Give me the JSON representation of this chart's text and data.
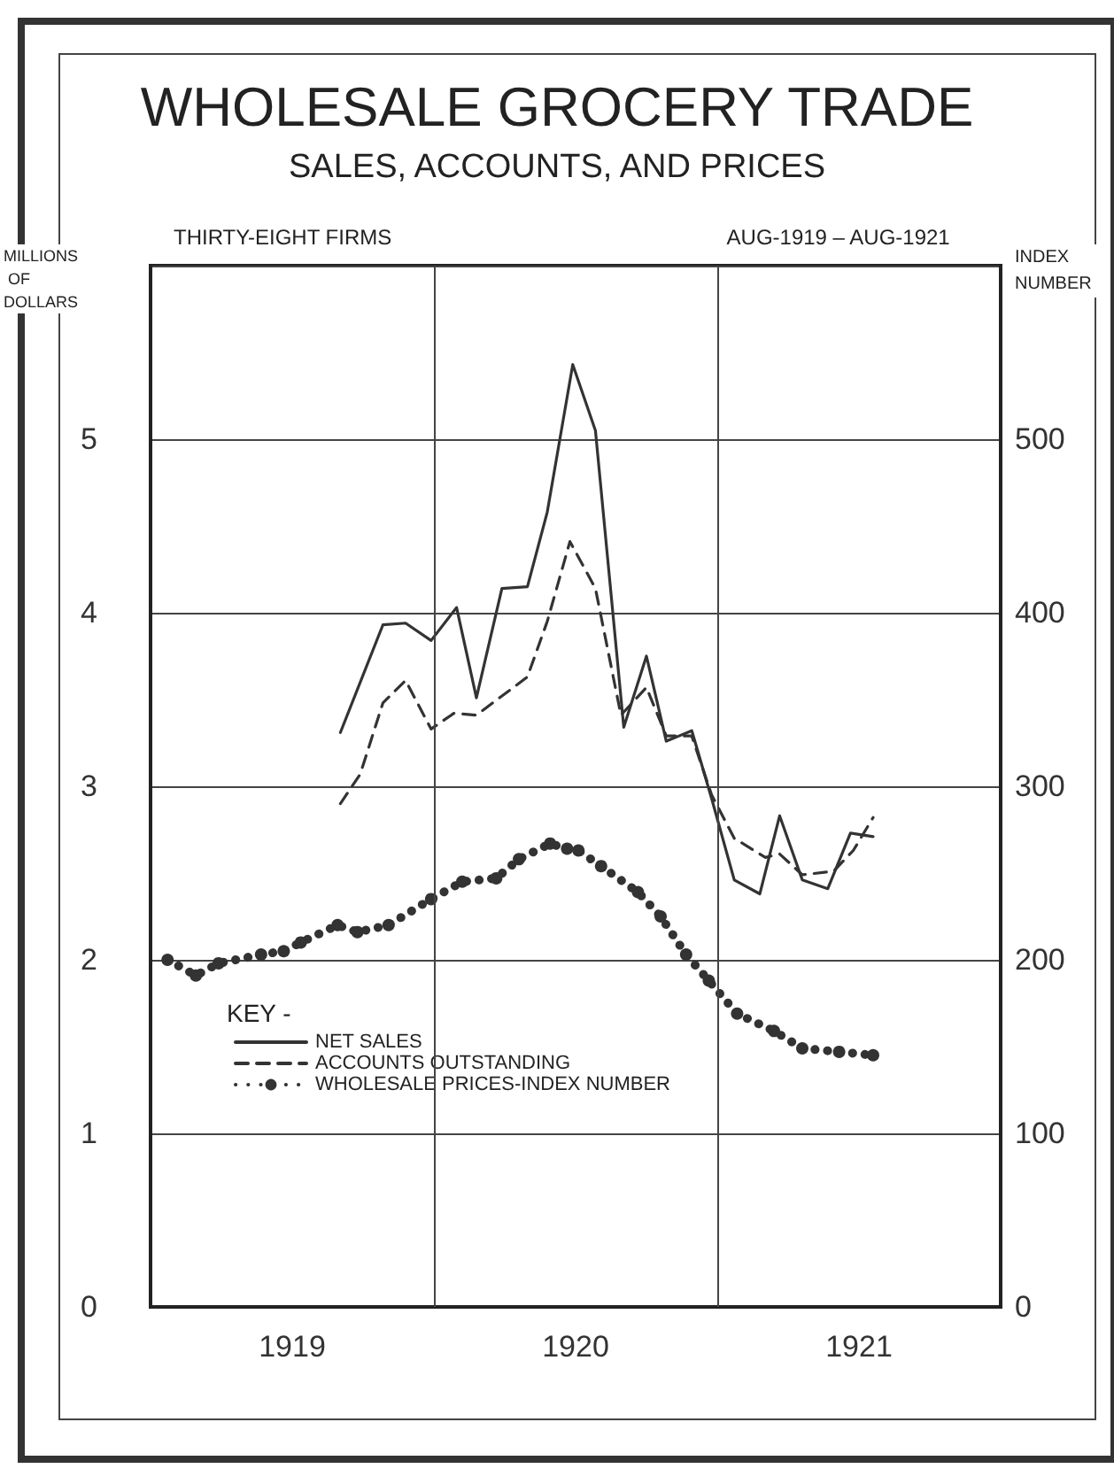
{
  "chart_data": {
    "type": "line",
    "title": "WHOLESALE GROCERY TRADE",
    "subtitle": "SALES, ACCOUNTS, AND PRICES",
    "annotations": [
      "THIRTY-EIGHT FIRMS",
      "AUG-1919 – AUG-1921"
    ],
    "ylabel": "MILLIONS OF DOLLARS",
    "y2label": "INDEX NUMBER",
    "legend_title": "KEY -",
    "legend": "bottom left",
    "grid": true,
    "xlim": [
      1919,
      1922
    ],
    "xticks": [
      {
        "value": 1919.5,
        "label": "1919"
      },
      {
        "value": 1920,
        "label": null
      },
      {
        "value": 1920.5,
        "label": "1920"
      },
      {
        "value": 1921,
        "label": null
      },
      {
        "value": 1921.5,
        "label": "1921"
      }
    ],
    "ylim": [
      0,
      6
    ],
    "yticks": [
      0,
      1,
      2,
      3,
      4,
      5
    ],
    "y2lim": [
      0,
      600
    ],
    "y2ticks": [
      0,
      100,
      200,
      300,
      400,
      500
    ],
    "series": [
      {
        "name": "NET SALES",
        "color": "#333333",
        "line_style": "solid",
        "marker": "none",
        "x": [
          1919.67,
          1919.82,
          1919.9,
          1919.99,
          1920.08,
          1920.15,
          1920.24,
          1920.33,
          1920.4,
          1920.49,
          1920.57,
          1920.67,
          1920.75,
          1920.82,
          1920.91,
          1920.98,
          1921.06,
          1921.15,
          1921.22,
          1921.3,
          1921.39,
          1921.47,
          1921.55
        ],
        "values": [
          3.31,
          3.93,
          3.94,
          3.84,
          4.03,
          3.51,
          4.14,
          4.15,
          4.58,
          5.43,
          5.05,
          3.34,
          3.75,
          3.26,
          3.32,
          2.93,
          2.46,
          2.38,
          2.83,
          2.46,
          2.41,
          2.73,
          2.71
        ]
      },
      {
        "name": "ACCOUNTS OUTSTANDING",
        "color": "#333333",
        "line_style": "dashed",
        "marker": "none",
        "x": [
          1919.67,
          1919.74,
          1919.82,
          1919.9,
          1919.99,
          1920.07,
          1920.15,
          1920.33,
          1920.4,
          1920.48,
          1920.57,
          1920.66,
          1920.75,
          1920.82,
          1920.91,
          1920.98,
          1921.06,
          1921.17,
          1921.22,
          1921.3,
          1921.41,
          1921.48,
          1921.55
        ],
        "values": [
          2.9,
          3.07,
          3.48,
          3.61,
          3.33,
          3.42,
          3.41,
          3.63,
          3.95,
          4.41,
          4.14,
          3.41,
          3.57,
          3.29,
          3.29,
          2.95,
          2.7,
          2.59,
          2.61,
          2.49,
          2.51,
          2.63,
          2.82
        ]
      },
      {
        "name": "WHOLESALE PRICES-INDEX NUMBER",
        "color": "#333333",
        "line_style": "dotted",
        "marker": "circle",
        "axis": "y2",
        "x": [
          1919.06,
          1919.16,
          1919.24,
          1919.39,
          1919.47,
          1919.53,
          1919.66,
          1919.73,
          1919.84,
          1919.99,
          1920.1,
          1920.22,
          1920.3,
          1920.41,
          1920.47,
          1920.51,
          1920.59,
          1920.72,
          1920.8,
          1920.89,
          1920.97,
          1921.07,
          1921.2,
          1921.3,
          1921.43,
          1921.55
        ],
        "values": [
          200,
          191,
          198,
          203,
          205,
          210,
          220,
          216,
          220,
          235,
          245,
          247,
          258,
          267,
          264,
          263,
          254,
          239,
          225,
          203,
          188,
          169,
          159,
          149,
          147,
          145
        ]
      }
    ]
  }
}
